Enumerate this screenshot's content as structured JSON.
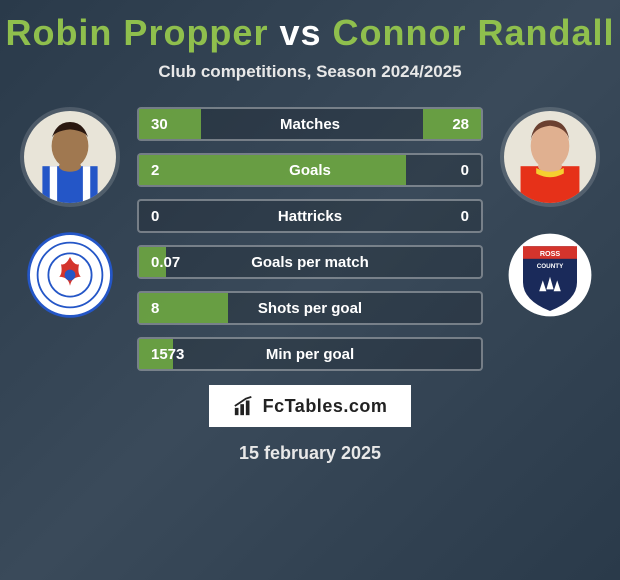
{
  "title": {
    "player1": "Robin Propper",
    "vs": "vs",
    "player2": "Connor Randall",
    "player1_color": "#8FBF4D",
    "player2_color": "#8FBF4D"
  },
  "subtitle": "Club competitions, Season 2024/2025",
  "player1": {
    "avatar_bg": "#e8e4d8",
    "jersey_color": "#2456C7",
    "stripe_color": "#ffffff",
    "skin": "#a07850",
    "hair": "#2a1810"
  },
  "player2": {
    "avatar_bg": "#e8e4d8",
    "jersey_color": "#E63119",
    "skin": "#e0b090",
    "hair": "#6b4030"
  },
  "club1": {
    "bg": "#ffffff",
    "ring": "#2456C7",
    "center": "#ffffff",
    "accent": "#D4342C"
  },
  "club2": {
    "bg": "#ffffff",
    "shield": "#1a2a5a",
    "top_band": "#D4342C"
  },
  "stats": [
    {
      "label": "Matches",
      "v1": "30",
      "v2": "28",
      "f1": 18,
      "f2": 17
    },
    {
      "label": "Goals",
      "v1": "2",
      "v2": "0",
      "f1": 78,
      "f2": 0
    },
    {
      "label": "Hattricks",
      "v1": "0",
      "v2": "0",
      "f1": 0,
      "f2": 0
    },
    {
      "label": "Goals per match",
      "v1": "0.07",
      "v2": "",
      "f1": 8,
      "f2": 0
    },
    {
      "label": "Shots per goal",
      "v1": "8",
      "v2": "",
      "f1": 26,
      "f2": 0
    },
    {
      "label": "Min per goal",
      "v1": "1573",
      "v2": "",
      "f1": 10,
      "f2": 0
    }
  ],
  "badge_text": "FcTables.com",
  "date": "15 february 2025",
  "bar_fill_color": "#6FA843"
}
